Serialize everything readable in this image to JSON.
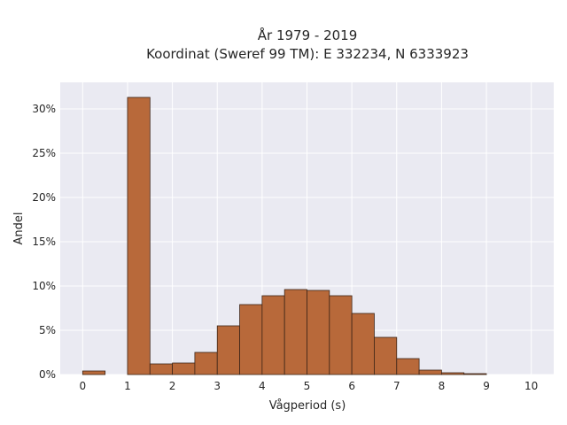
{
  "chart_data": {
    "type": "bar",
    "title_lines": [
      "År 1979 - 2019",
      "Koordinat (Sweref 99 TM): E 332234, N 6333923"
    ],
    "xlabel": "Vågperiod (s)",
    "ylabel": "Andel",
    "xlim": [
      -0.5,
      10.5
    ],
    "ylim": [
      0,
      0.33
    ],
    "bin_width": 0.5,
    "xticks": [
      0,
      1,
      2,
      3,
      4,
      5,
      6,
      7,
      8,
      9,
      10
    ],
    "yticks": [
      0,
      0.05,
      0.1,
      0.15,
      0.2,
      0.25,
      0.3
    ],
    "ytick_labels": [
      "0%",
      "5%",
      "10%",
      "15%",
      "20%",
      "25%",
      "30%"
    ],
    "bins": [
      {
        "x0": 0.0,
        "value": 0.004
      },
      {
        "x0": 0.5,
        "value": 0.0
      },
      {
        "x0": 1.0,
        "value": 0.313
      },
      {
        "x0": 1.5,
        "value": 0.012
      },
      {
        "x0": 2.0,
        "value": 0.013
      },
      {
        "x0": 2.5,
        "value": 0.025
      },
      {
        "x0": 3.0,
        "value": 0.055
      },
      {
        "x0": 3.5,
        "value": 0.079
      },
      {
        "x0": 4.0,
        "value": 0.089
      },
      {
        "x0": 4.5,
        "value": 0.096
      },
      {
        "x0": 5.0,
        "value": 0.095
      },
      {
        "x0": 5.5,
        "value": 0.089
      },
      {
        "x0": 6.0,
        "value": 0.069
      },
      {
        "x0": 6.5,
        "value": 0.042
      },
      {
        "x0": 7.0,
        "value": 0.018
      },
      {
        "x0": 7.5,
        "value": 0.005
      },
      {
        "x0": 8.0,
        "value": 0.002
      },
      {
        "x0": 8.5,
        "value": 0.001
      },
      {
        "x0": 9.0,
        "value": 0.0
      },
      {
        "x0": 9.5,
        "value": 0.0
      }
    ],
    "grid": true,
    "colors": {
      "bar_fill": "#b8693a",
      "bar_edge": "#3d2518",
      "plot_background": "#eaeaf2",
      "grid": "#ffffff"
    }
  }
}
